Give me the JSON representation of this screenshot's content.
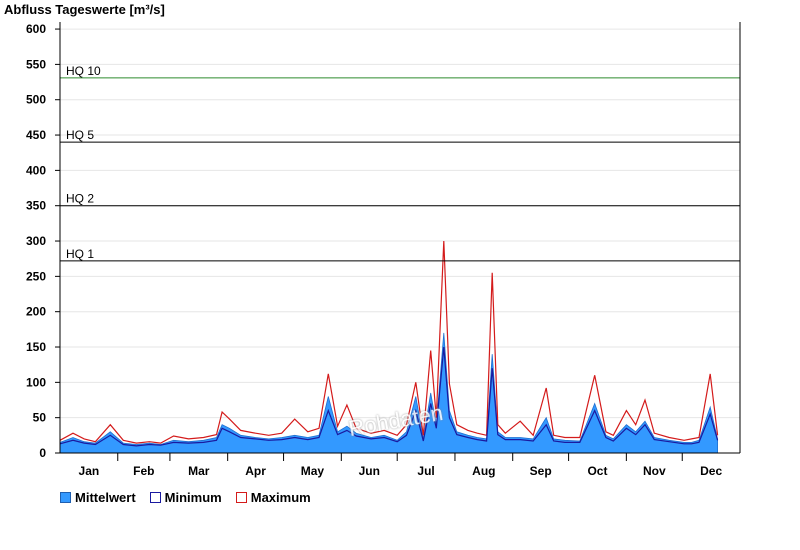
{
  "title": "Abfluss Tageswerte [m³/s]",
  "watermark": "Rohdaten",
  "legend": {
    "mean": "Mittelwert",
    "min": "Minimum",
    "max": "Maximum"
  },
  "colors": {
    "mean_fill": "#3399ff",
    "min_line": "#1a1aa0",
    "max_line": "#d41b1b",
    "hq10_line": "#2e8b2e",
    "hq_line": "#000000"
  },
  "chart_data": {
    "type": "area",
    "title": "Abfluss Tageswerte [m³/s]",
    "xlabel": "",
    "ylabel": "",
    "ylim": [
      0,
      610
    ],
    "yticks": [
      0,
      50,
      100,
      150,
      200,
      250,
      300,
      350,
      400,
      450,
      500,
      550,
      600
    ],
    "grid": true,
    "legend_position": "bottom-left",
    "months": [
      "Jan",
      "Feb",
      "Mar",
      "Apr",
      "May",
      "Jun",
      "Jul",
      "Aug",
      "Sep",
      "Oct",
      "Nov",
      "Dec"
    ],
    "thresholds": [
      {
        "label": "HQ 1",
        "value": 272
      },
      {
        "label": "HQ 2",
        "value": 350
      },
      {
        "label": "HQ 5",
        "value": 440
      },
      {
        "label": "HQ 10",
        "value": 531
      }
    ],
    "x_day": [
      1,
      8,
      14,
      20,
      28,
      35,
      42,
      49,
      55,
      62,
      70,
      78,
      85,
      88,
      92,
      98,
      106,
      113,
      120,
      127,
      134,
      140,
      145,
      150,
      155,
      160,
      168,
      175,
      182,
      187,
      192,
      196,
      200,
      203,
      207,
      210,
      214,
      220,
      225,
      230,
      233,
      236,
      240,
      248,
      255,
      262,
      266,
      272,
      280,
      288,
      294,
      298,
      305,
      310,
      315,
      320,
      328,
      336,
      340,
      344,
      350,
      354
    ],
    "series": [
      {
        "name": "Mittelwert",
        "values": [
          15,
          22,
          16,
          14,
          30,
          14,
          12,
          14,
          12,
          18,
          16,
          18,
          22,
          40,
          35,
          25,
          22,
          20,
          22,
          25,
          22,
          25,
          80,
          30,
          38,
          28,
          22,
          25,
          18,
          30,
          80,
          20,
          85,
          40,
          170,
          60,
          30,
          25,
          22,
          20,
          140,
          30,
          22,
          22,
          20,
          50,
          20,
          18,
          17,
          70,
          25,
          20,
          40,
          30,
          45,
          22,
          18,
          15,
          15,
          18,
          65,
          20
        ]
      },
      {
        "name": "Minimum",
        "values": [
          13,
          18,
          14,
          12,
          25,
          12,
          10,
          12,
          11,
          15,
          14,
          15,
          18,
          35,
          30,
          22,
          20,
          18,
          19,
          22,
          19,
          22,
          60,
          26,
          32,
          24,
          20,
          22,
          16,
          25,
          60,
          17,
          70,
          35,
          150,
          50,
          26,
          22,
          19,
          17,
          120,
          26,
          19,
          19,
          17,
          40,
          17,
          15,
          15,
          60,
          22,
          17,
          35,
          26,
          40,
          19,
          16,
          13,
          13,
          15,
          55,
          18
        ]
      },
      {
        "name": "Maximum",
        "values": [
          18,
          28,
          20,
          16,
          40,
          18,
          14,
          16,
          14,
          24,
          20,
          22,
          26,
          58,
          48,
          32,
          28,
          25,
          28,
          48,
          30,
          35,
          112,
          38,
          68,
          35,
          28,
          32,
          25,
          40,
          100,
          25,
          145,
          50,
          300,
          98,
          40,
          32,
          28,
          25,
          255,
          40,
          28,
          45,
          25,
          92,
          25,
          22,
          22,
          110,
          30,
          25,
          60,
          40,
          75,
          28,
          22,
          18,
          20,
          22,
          112,
          25
        ]
      }
    ]
  }
}
